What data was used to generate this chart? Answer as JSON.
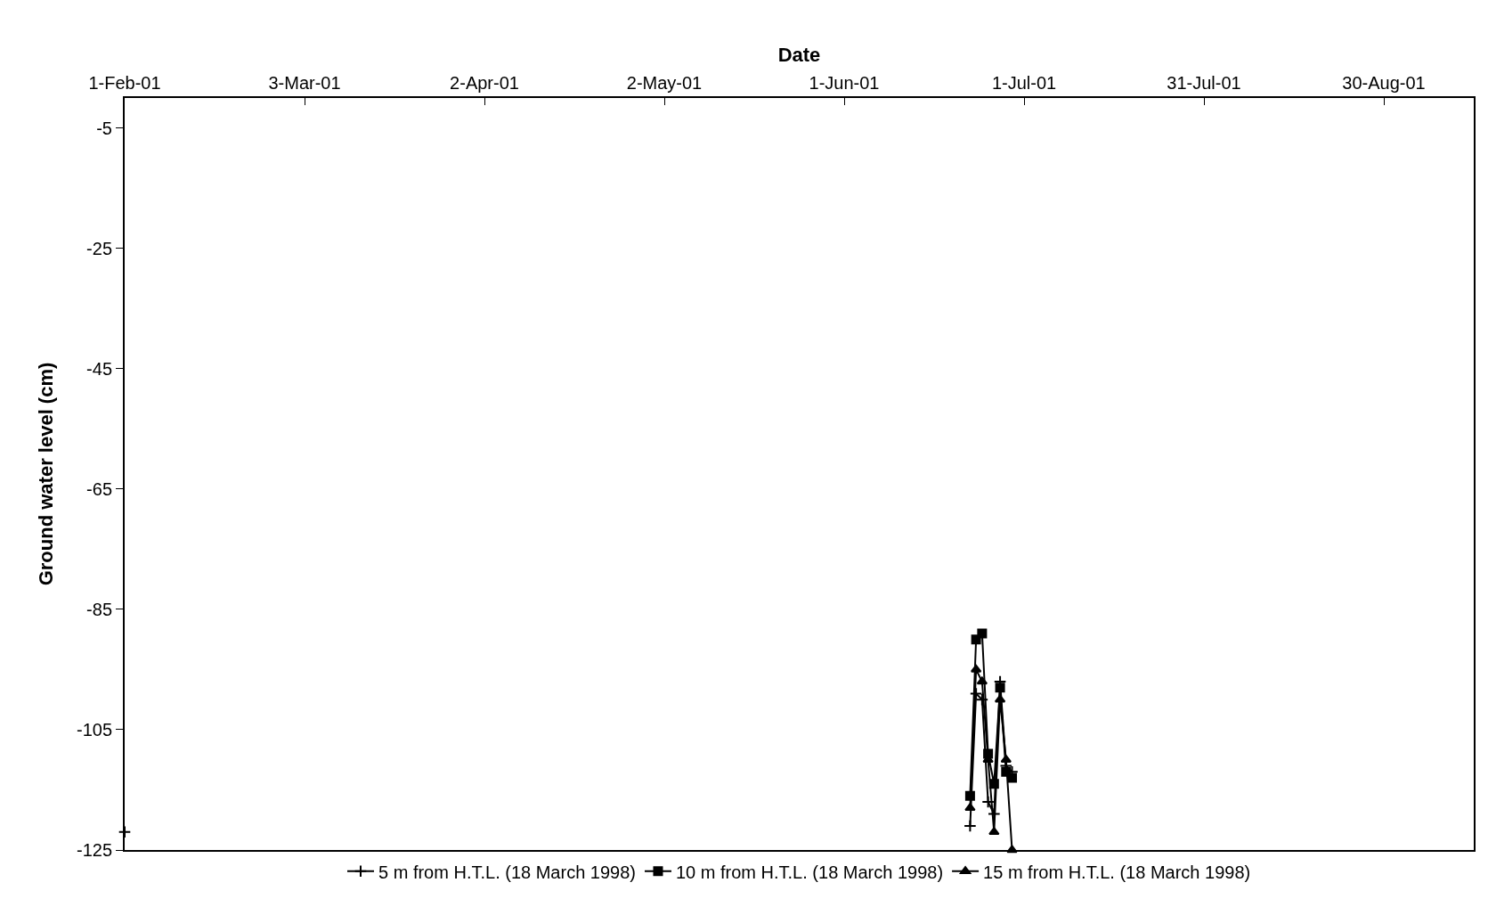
{
  "chart_data": {
    "type": "line",
    "xlabel": "Date",
    "ylabel": "Ground water level (cm)",
    "xlim": [
      "2001-02-01",
      "2001-09-14"
    ],
    "xticks": [
      {
        "value": "2001-02-01",
        "label": "1-Feb-01"
      },
      {
        "value": "2001-03-03",
        "label": "3-Mar-01"
      },
      {
        "value": "2001-04-02",
        "label": "2-Apr-01"
      },
      {
        "value": "2001-05-02",
        "label": "2-May-01"
      },
      {
        "value": "2001-06-01",
        "label": "1-Jun-01"
      },
      {
        "value": "2001-07-01",
        "label": "1-Jul-01"
      },
      {
        "value": "2001-07-31",
        "label": "31-Jul-01"
      },
      {
        "value": "2001-08-30",
        "label": "30-Aug-01"
      }
    ],
    "ylim": [
      -125,
      0
    ],
    "yticks": [
      -5,
      -25,
      -45,
      -65,
      -85,
      -105,
      -125
    ],
    "grid": false,
    "legend": "bottom",
    "line_style": "solid",
    "series": [
      {
        "name": "5 m from H.T.L. (18 March 1998)",
        "color": "#000000",
        "marker": "cross",
        "x": [
          "2001-02-01",
          "2001-06-21",
          "2001-06-22",
          "2001-06-23",
          "2001-06-24",
          "2001-06-25",
          "2001-06-26",
          "2001-06-27",
          "2001-06-28",
          "2001-06-29"
        ],
        "values": [
          -122,
          null,
          -121,
          -99,
          -100,
          -117,
          -119,
          -97,
          -111,
          -112
        ]
      },
      {
        "name": "10 m from H.T.L. (18 March 1998)",
        "color": "#000000",
        "marker": "square",
        "x": [
          "2001-06-22",
          "2001-06-23",
          "2001-06-24",
          "2001-06-25",
          "2001-06-26",
          "2001-06-27",
          "2001-06-28",
          "2001-06-29"
        ],
        "values": [
          -116,
          -90,
          -89,
          -109,
          -114,
          -98,
          -112,
          -113
        ]
      },
      {
        "name": "15 m from H.T.L. (18 March 1998)",
        "color": "#000000",
        "marker": "triangle",
        "x": [
          "2001-06-22",
          "2001-06-23",
          "2001-06-24",
          "2001-06-25",
          "2001-06-26",
          "2001-06-27",
          "2001-06-28",
          "2001-06-29"
        ],
        "values": [
          -118,
          -95,
          -97,
          -110,
          -122,
          -100,
          -110,
          -125
        ]
      }
    ]
  }
}
